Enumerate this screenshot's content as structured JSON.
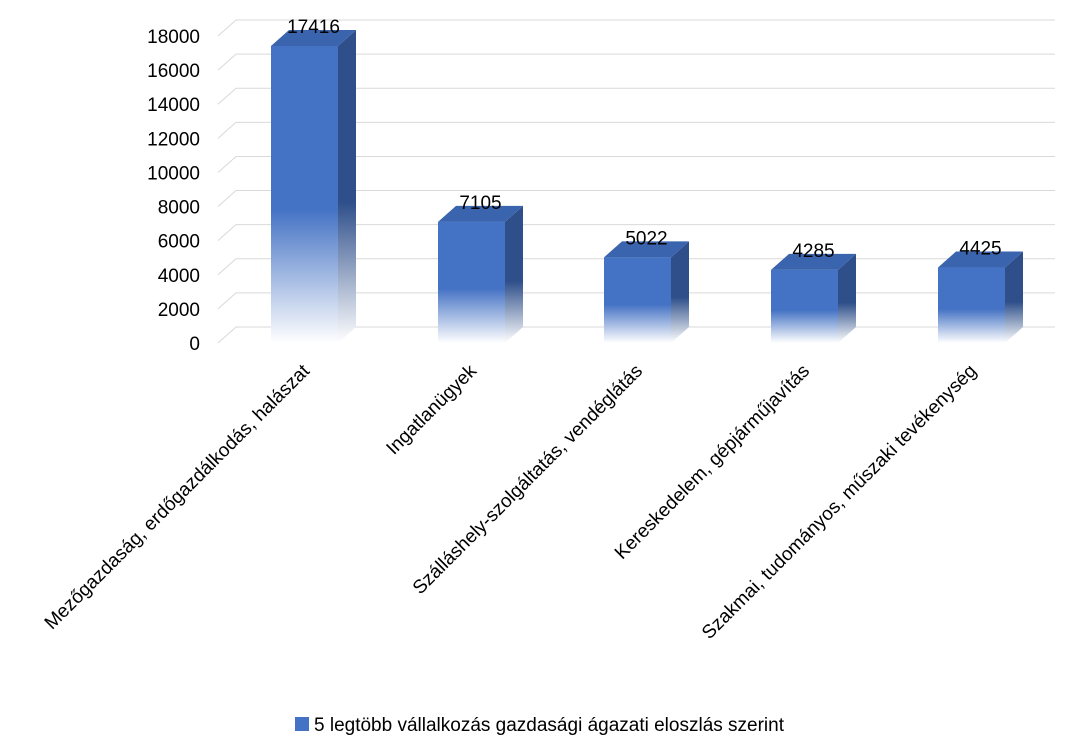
{
  "chart_data": {
    "type": "bar",
    "title": "",
    "xlabel": "",
    "ylabel": "",
    "categories": [
      "Mezőgazdaság, erdőgazdálkodás, halászat",
      "Ingatlanügyek",
      "Szálláshely-szolgáltatás, vendéglátás",
      "Kereskedelem, gépjárműjavítás",
      "Szakmai, tudományos, műszaki tevékenység"
    ],
    "series": [
      {
        "name": "5 legtöbb vállalkozás gazdasági ágazati eloszlás szerint",
        "values": [
          17416,
          7105,
          5022,
          4285,
          4425
        ],
        "color": "#4472c4"
      }
    ],
    "ylim": [
      0,
      18000
    ],
    "yticks": [
      0,
      2000,
      4000,
      6000,
      8000,
      10000,
      12000,
      14000,
      16000,
      18000
    ],
    "grid": true,
    "legend": "bottom",
    "style": "3d-column"
  }
}
